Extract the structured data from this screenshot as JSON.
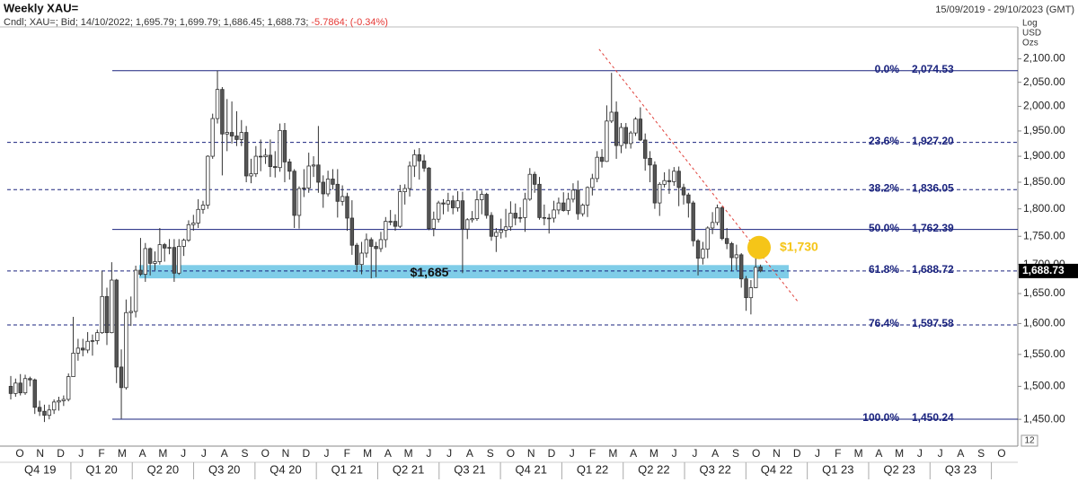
{
  "chart_data": {
    "type": "candlestick",
    "title": "Weekly XAU=",
    "date_range": "15/09/2019 - 29/10/2023 (GMT)",
    "info": [
      "Cndl;",
      "XAU=;",
      "Bid;",
      "14/10/2022;",
      "1,695.79;",
      "1,699.79;",
      "1,686.45;",
      "1,688.73;"
    ],
    "change": [
      "-5.7864;",
      "(-0.34%)"
    ],
    "change_color": "#e53935",
    "scale_labels": [
      "Log",
      "USD",
      "Ozs"
    ],
    "corner_label": "12",
    "log_scale": true,
    "up_color": "#ffffff",
    "down_color": "#555555",
    "ylim": [
      1425,
      2170
    ],
    "yticks": [
      {
        "value": 1450,
        "label": "1,450.00"
      },
      {
        "value": 1500,
        "label": "1,500.00"
      },
      {
        "value": 1550,
        "label": "1,550.00"
      },
      {
        "value": 1600,
        "label": "1,600.00"
      },
      {
        "value": 1650,
        "label": "1,650.00"
      },
      {
        "value": 1700,
        "label": "1,700.00"
      },
      {
        "value": 1750,
        "label": "1,750.00"
      },
      {
        "value": 1800,
        "label": "1,800.00"
      },
      {
        "value": 1850,
        "label": "1,850.00"
      },
      {
        "value": 1900,
        "label": "1,900.00"
      },
      {
        "value": 1950,
        "label": "1,950.00"
      },
      {
        "value": 2000,
        "label": "2,000.00"
      },
      {
        "value": 2050,
        "label": "2,050.00"
      },
      {
        "value": 2100,
        "label": "2,100.00"
      }
    ],
    "months": [
      "O",
      "N",
      "D",
      "J",
      "F",
      "M",
      "A",
      "M",
      "J",
      "J",
      "A",
      "S",
      "O",
      "N",
      "D",
      "J",
      "F",
      "M",
      "A",
      "M",
      "J",
      "J",
      "A",
      "S",
      "O",
      "N",
      "D",
      "J",
      "F",
      "M",
      "A",
      "M",
      "J",
      "J",
      "A",
      "S",
      "O",
      "N",
      "D",
      "J",
      "F",
      "M",
      "A",
      "M",
      "J",
      "J",
      "A",
      "S",
      "O"
    ],
    "quarters": [
      "Q4 19",
      "Q1 20",
      "Q2 20",
      "Q3 20",
      "Q4 20",
      "Q1 21",
      "Q2 21",
      "Q3 21",
      "Q4 21",
      "Q1 22",
      "Q2 22",
      "Q3 22",
      "Q4 22",
      "Q1 23",
      "Q2 23",
      "Q3 23"
    ],
    "candles": [
      [
        1500,
        1516,
        1480,
        1489
      ],
      [
        1489,
        1512,
        1484,
        1505
      ],
      [
        1505,
        1519,
        1486,
        1490
      ],
      [
        1490,
        1518,
        1487,
        1512
      ],
      [
        1512,
        1515,
        1500,
        1510
      ],
      [
        1510,
        1512,
        1458,
        1468
      ],
      [
        1468,
        1478,
        1455,
        1462
      ],
      [
        1462,
        1472,
        1446,
        1456
      ],
      [
        1456,
        1472,
        1450,
        1464
      ],
      [
        1464,
        1480,
        1458,
        1476
      ],
      [
        1476,
        1484,
        1463,
        1478
      ],
      [
        1478,
        1486,
        1470,
        1480
      ],
      [
        1480,
        1520,
        1477,
        1515
      ],
      [
        1515,
        1611,
        1515,
        1552
      ],
      [
        1552,
        1575,
        1540,
        1560
      ],
      [
        1560,
        1575,
        1547,
        1557
      ],
      [
        1557,
        1586,
        1552,
        1571
      ],
      [
        1571,
        1582,
        1548,
        1572
      ],
      [
        1572,
        1590,
        1566,
        1585
      ],
      [
        1585,
        1689,
        1583,
        1645
      ],
      [
        1645,
        1660,
        1565,
        1585
      ],
      [
        1585,
        1704,
        1584,
        1673
      ],
      [
        1673,
        1675,
        1505,
        1530
      ],
      [
        1530,
        1558,
        1451,
        1498
      ],
      [
        1498,
        1640,
        1495,
        1618
      ],
      [
        1618,
        1645,
        1596,
        1620
      ],
      [
        1620,
        1698,
        1610,
        1690
      ],
      [
        1690,
        1747,
        1680,
        1683
      ],
      [
        1683,
        1738,
        1670,
        1728
      ],
      [
        1728,
        1730,
        1681,
        1702
      ],
      [
        1702,
        1723,
        1690,
        1705
      ],
      [
        1705,
        1765,
        1700,
        1735
      ],
      [
        1735,
        1738,
        1705,
        1729
      ],
      [
        1729,
        1745,
        1718,
        1730
      ],
      [
        1730,
        1745,
        1670,
        1685
      ],
      [
        1685,
        1745,
        1682,
        1732
      ],
      [
        1732,
        1746,
        1715,
        1743
      ],
      [
        1743,
        1779,
        1740,
        1771
      ],
      [
        1771,
        1789,
        1760,
        1774
      ],
      [
        1774,
        1818,
        1765,
        1799
      ],
      [
        1799,
        1815,
        1791,
        1807
      ],
      [
        1807,
        1902,
        1800,
        1900
      ],
      [
        1900,
        1985,
        1895,
        1975
      ],
      [
        1975,
        2075,
        1965,
        2035
      ],
      [
        2035,
        2040,
        1863,
        1944
      ],
      [
        1944,
        2015,
        1910,
        1947
      ],
      [
        1947,
        2010,
        1925,
        1940
      ],
      [
        1940,
        1990,
        1920,
        1933
      ],
      [
        1933,
        1972,
        1920,
        1947
      ],
      [
        1947,
        1960,
        1850,
        1862
      ],
      [
        1862,
        1895,
        1848,
        1866
      ],
      [
        1866,
        1920,
        1860,
        1900
      ],
      [
        1900,
        1933,
        1871,
        1899
      ],
      [
        1899,
        1915,
        1885,
        1902
      ],
      [
        1902,
        1933,
        1860,
        1880
      ],
      [
        1880,
        1910,
        1859,
        1878
      ],
      [
        1878,
        1965,
        1870,
        1951
      ],
      [
        1951,
        1966,
        1850,
        1889
      ],
      [
        1889,
        1895,
        1855,
        1871
      ],
      [
        1871,
        1875,
        1765,
        1788
      ],
      [
        1788,
        1842,
        1764,
        1838
      ],
      [
        1838,
        1875,
        1822,
        1839
      ],
      [
        1839,
        1907,
        1830,
        1881
      ],
      [
        1881,
        1900,
        1860,
        1883
      ],
      [
        1883,
        1960,
        1830,
        1850
      ],
      [
        1850,
        1863,
        1802,
        1828
      ],
      [
        1828,
        1872,
        1823,
        1856
      ],
      [
        1856,
        1875,
        1836,
        1846
      ],
      [
        1846,
        1875,
        1784,
        1814
      ],
      [
        1814,
        1844,
        1806,
        1823
      ],
      [
        1823,
        1830,
        1760,
        1783
      ],
      [
        1783,
        1816,
        1717,
        1734
      ],
      [
        1734,
        1738,
        1687,
        1700
      ],
      [
        1700,
        1740,
        1683,
        1720
      ],
      [
        1720,
        1755,
        1712,
        1744
      ],
      [
        1744,
        1748,
        1676,
        1732
      ],
      [
        1732,
        1740,
        1678,
        1728
      ],
      [
        1728,
        1758,
        1722,
        1744
      ],
      [
        1744,
        1785,
        1730,
        1777
      ],
      [
        1777,
        1798,
        1770,
        1777
      ],
      [
        1777,
        1790,
        1760,
        1768
      ],
      [
        1768,
        1845,
        1765,
        1832
      ],
      [
        1832,
        1846,
        1808,
        1838
      ],
      [
        1838,
        1890,
        1823,
        1881
      ],
      [
        1881,
        1913,
        1860,
        1903
      ],
      [
        1903,
        1916,
        1855,
        1891
      ],
      [
        1891,
        1903,
        1870,
        1877
      ],
      [
        1877,
        1879,
        1761,
        1764
      ],
      [
        1764,
        1795,
        1750,
        1781
      ],
      [
        1781,
        1815,
        1775,
        1811
      ],
      [
        1811,
        1818,
        1790,
        1809
      ],
      [
        1809,
        1830,
        1795,
        1815
      ],
      [
        1815,
        1825,
        1790,
        1802
      ],
      [
        1802,
        1833,
        1795,
        1815
      ],
      [
        1815,
        1832,
        1685,
        1763
      ],
      [
        1763,
        1783,
        1745,
        1780
      ],
      [
        1780,
        1796,
        1775,
        1782
      ],
      [
        1782,
        1834,
        1778,
        1817
      ],
      [
        1817,
        1834,
        1790,
        1827
      ],
      [
        1827,
        1830,
        1782,
        1788
      ],
      [
        1788,
        1794,
        1742,
        1750
      ],
      [
        1750,
        1765,
        1722,
        1757
      ],
      [
        1757,
        1782,
        1746,
        1761
      ],
      [
        1761,
        1800,
        1748,
        1767
      ],
      [
        1767,
        1814,
        1760,
        1792
      ],
      [
        1792,
        1810,
        1770,
        1783
      ],
      [
        1783,
        1803,
        1775,
        1784
      ],
      [
        1784,
        1830,
        1758,
        1818
      ],
      [
        1818,
        1877,
        1815,
        1865
      ],
      [
        1865,
        1870,
        1830,
        1846
      ],
      [
        1846,
        1860,
        1780,
        1784
      ],
      [
        1784,
        1808,
        1770,
        1783
      ],
      [
        1783,
        1791,
        1755,
        1783
      ],
      [
        1783,
        1815,
        1775,
        1798
      ],
      [
        1798,
        1821,
        1790,
        1811
      ],
      [
        1811,
        1831,
        1795,
        1797
      ],
      [
        1797,
        1830,
        1789,
        1818
      ],
      [
        1818,
        1848,
        1812,
        1835
      ],
      [
        1835,
        1853,
        1780,
        1791
      ],
      [
        1791,
        1810,
        1786,
        1807
      ],
      [
        1807,
        1842,
        1785,
        1840
      ],
      [
        1840,
        1866,
        1825,
        1857
      ],
      [
        1857,
        1910,
        1850,
        1898
      ],
      [
        1898,
        1914,
        1878,
        1890
      ],
      [
        1890,
        2002,
        1889,
        1970
      ],
      [
        1970,
        2070,
        1966,
        1988
      ],
      [
        1988,
        2010,
        1895,
        1921
      ],
      [
        1921,
        1966,
        1906,
        1957
      ],
      [
        1957,
        1966,
        1915,
        1925
      ],
      [
        1925,
        1950,
        1915,
        1946
      ],
      [
        1946,
        1978,
        1940,
        1974
      ],
      [
        1974,
        1998,
        1930,
        1932
      ],
      [
        1932,
        1945,
        1872,
        1896
      ],
      [
        1896,
        1910,
        1850,
        1883
      ],
      [
        1883,
        1890,
        1800,
        1811
      ],
      [
        1811,
        1850,
        1787,
        1846
      ],
      [
        1846,
        1869,
        1840,
        1853
      ],
      [
        1853,
        1875,
        1828,
        1851
      ],
      [
        1851,
        1879,
        1843,
        1871
      ],
      [
        1871,
        1880,
        1805,
        1840
      ],
      [
        1840,
        1847,
        1808,
        1826
      ],
      [
        1826,
        1830,
        1784,
        1811
      ],
      [
        1811,
        1815,
        1732,
        1742
      ],
      [
        1742,
        1745,
        1681,
        1711
      ],
      [
        1711,
        1740,
        1700,
        1727
      ],
      [
        1727,
        1768,
        1711,
        1765
      ],
      [
        1765,
        1794,
        1754,
        1775
      ],
      [
        1775,
        1808,
        1770,
        1802
      ],
      [
        1802,
        1805,
        1743,
        1746
      ],
      [
        1746,
        1765,
        1727,
        1737
      ],
      [
        1737,
        1740,
        1688,
        1712
      ],
      [
        1712,
        1735,
        1690,
        1717
      ],
      [
        1717,
        1720,
        1660,
        1675
      ],
      [
        1675,
        1680,
        1621,
        1643
      ],
      [
        1643,
        1673,
        1615,
        1660
      ],
      [
        1660,
        1730,
        1659,
        1695
      ],
      [
        1695.79,
        1699.79,
        1686.45,
        1688.73
      ]
    ],
    "fib_levels": [
      {
        "name": "0.0%",
        "value": 2074.53,
        "label": "2,074.53",
        "line": "solid"
      },
      {
        "name": "23.6%",
        "value": 1927.2,
        "label": "1,927.20",
        "line": "dashed"
      },
      {
        "name": "38.2%",
        "value": 1836.05,
        "label": "1,836.05",
        "line": "dashed"
      },
      {
        "name": "50.0%",
        "value": 1762.39,
        "label": "1,762.39",
        "line": "solid"
      },
      {
        "name": "61.8%",
        "value": 1688.72,
        "label": "1,688.72",
        "line": "dashed"
      },
      {
        "name": "76.4%",
        "value": 1597.58,
        "label": "1,597.58",
        "line": "dashed"
      },
      {
        "name": "100.0%",
        "value": 1450.24,
        "label": "1,450.24",
        "line": "solid"
      }
    ],
    "fib_color": "#1a237e",
    "support_zone": {
      "range": [
        1676,
        1699
      ],
      "value": 1685,
      "label": "$1,685",
      "color": "#7fcde8"
    },
    "target": {
      "value": 1730,
      "label": "$1,730",
      "color": "#f5c518"
    },
    "trendline": {
      "x": [
        122.4,
        163.7
      ],
      "values": [
        2121,
        1637
      ],
      "color": "#e0403a"
    },
    "last": {
      "value": 1688.73,
      "label": "1,688.73"
    }
  }
}
